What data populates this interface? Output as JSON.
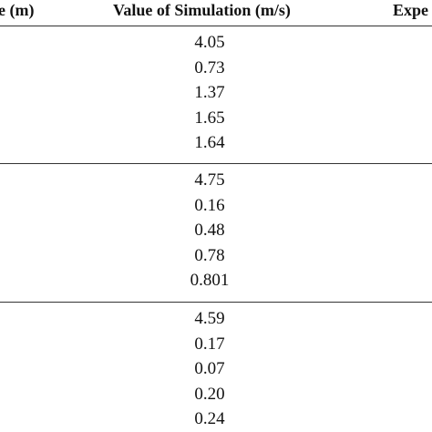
{
  "table": {
    "header": [
      "e (m)",
      "Value of Simulation (m/s)",
      "Expe"
    ],
    "groups": [
      [
        "4.05",
        "0.73",
        "1.37",
        "1.65",
        "1.64"
      ],
      [
        "4.75",
        "0.16",
        "0.48",
        "0.78",
        "0.801"
      ],
      [
        "4.59",
        "0.17",
        "0.07",
        "0.20",
        "0.24"
      ]
    ]
  }
}
